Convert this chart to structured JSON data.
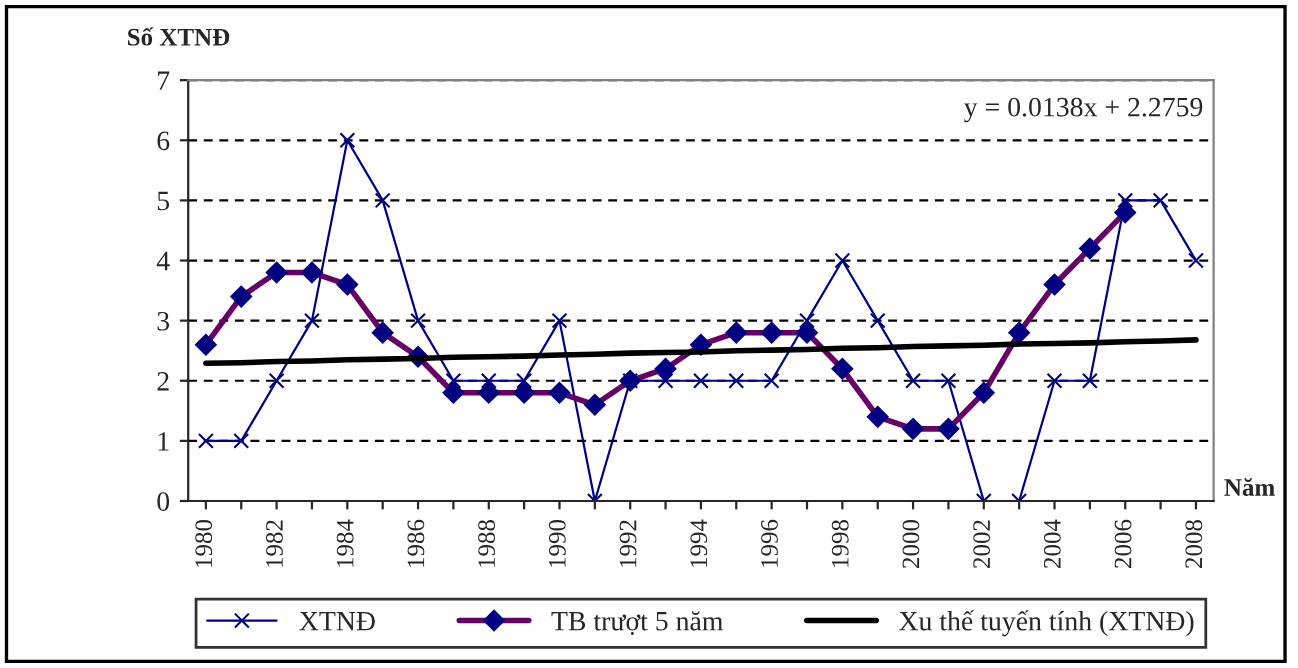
{
  "chart_data": {
    "type": "line",
    "ylabel": "Số XTNĐ",
    "xlabel": "Năm",
    "categories": [
      "1980",
      null,
      "1982",
      null,
      "1984",
      null,
      "1986",
      null,
      "1988",
      null,
      "1990",
      null,
      "1992",
      null,
      "1994",
      null,
      "1996",
      null,
      "1998",
      null,
      "2000",
      null,
      "2002",
      null,
      "2004",
      null,
      "2006",
      null,
      "2008"
    ],
    "series": [
      {
        "name": "XTNĐ",
        "color": "#000080",
        "marker": "cross",
        "values": [
          1,
          1,
          2,
          3,
          6,
          5,
          3,
          2,
          2,
          2,
          3,
          0,
          2,
          2,
          2,
          2,
          2,
          3,
          4,
          3,
          2,
          2,
          0,
          0,
          2,
          2,
          5,
          5,
          4
        ]
      },
      {
        "name": "TB trượt 5 năm",
        "color": "#660066",
        "marker": "diamond",
        "values": [
          2.6,
          3.4,
          3.8,
          3.8,
          3.6,
          2.8,
          2.4,
          1.8,
          1.8,
          1.8,
          1.8,
          1.6,
          2.0,
          2.2,
          2.6,
          2.8,
          2.8,
          2.8,
          2.2,
          1.4,
          1.2,
          1.2,
          1.8,
          2.8,
          3.6,
          4.2,
          4.8,
          null,
          null
        ]
      },
      {
        "name": "Xu thế tuyến tính (XTNĐ)",
        "color": "#000000",
        "marker": "none",
        "values": [
          2.29,
          2.3,
          2.32,
          2.33,
          2.35,
          2.36,
          2.37,
          2.39,
          2.4,
          2.41,
          2.43,
          2.44,
          2.46,
          2.47,
          2.48,
          2.5,
          2.51,
          2.52,
          2.54,
          2.55,
          2.57,
          2.58,
          2.59,
          2.61,
          2.62,
          2.63,
          2.65,
          2.66,
          2.68
        ]
      }
    ],
    "ylim": [
      0,
      7
    ],
    "yticks": [
      0,
      1,
      2,
      3,
      4,
      5,
      6,
      7
    ],
    "grid": "y",
    "legend": "bottom",
    "line_style": "solid",
    "annotations": [
      "y = 0.0138x + 2.2759"
    ]
  }
}
